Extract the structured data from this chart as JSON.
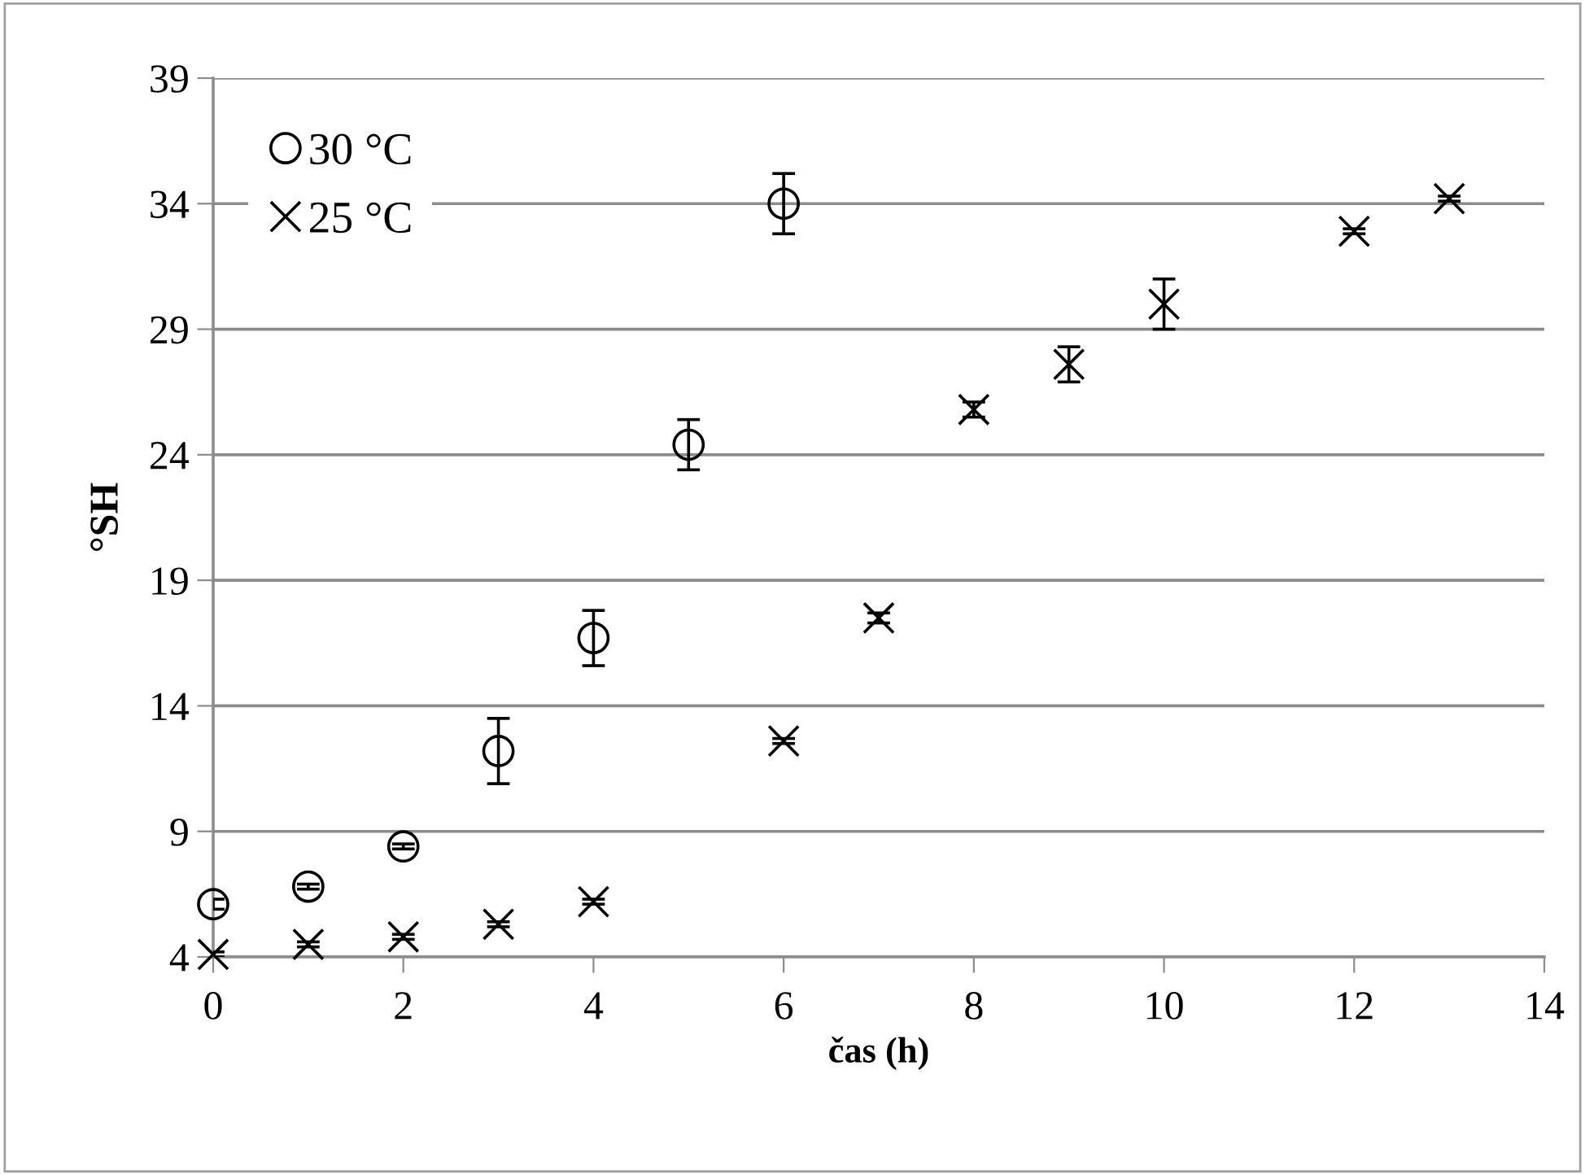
{
  "chart_data": {
    "type": "scatter",
    "xlabel": "čas (h)",
    "ylabel": "°SH",
    "xlim": [
      0,
      14
    ],
    "xticks": [
      0,
      2,
      4,
      6,
      8,
      10,
      12,
      14
    ],
    "ylim": [
      4,
      39
    ],
    "yticks": [
      4,
      9,
      14,
      19,
      24,
      29,
      34,
      39
    ],
    "grid": "y",
    "legend": "top left",
    "series": [
      {
        "name": "30 °C",
        "color": "#000000",
        "marker": "circle",
        "x": [
          0,
          1,
          2,
          3,
          4,
          5,
          6
        ],
        "values": [
          6.1,
          6.8,
          8.4,
          12.2,
          16.7,
          24.4,
          34.0
        ],
        "errors": [
          0.2,
          0.1,
          0.1,
          1.3,
          1.1,
          1.0,
          1.2
        ]
      },
      {
        "name": "25 °C",
        "color": "#000000",
        "marker": "cross",
        "x": [
          0,
          1,
          2,
          3,
          4,
          6,
          7,
          8,
          9,
          10,
          12,
          13
        ],
        "values": [
          4.1,
          4.5,
          4.8,
          5.3,
          6.2,
          12.6,
          17.5,
          25.8,
          27.6,
          30.0,
          32.9,
          34.2
        ],
        "errors": [
          0.1,
          0.1,
          0.1,
          0.1,
          0.1,
          0.1,
          0.2,
          0.3,
          0.7,
          1.0,
          0.1,
          0.1
        ]
      }
    ]
  }
}
